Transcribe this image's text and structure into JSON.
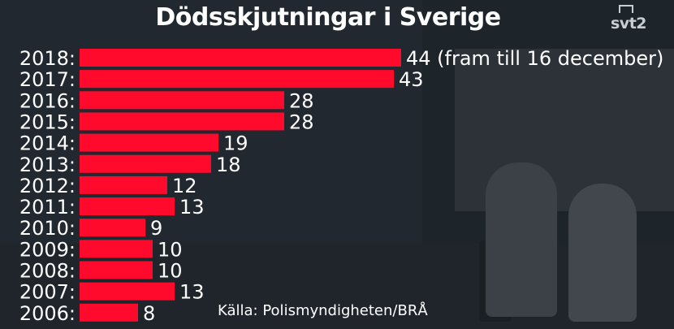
{
  "header": {
    "title": "Dödsskjutningar i Sverige",
    "logo_text": "svt2"
  },
  "source": "Källa: Polismyndigheten/BRÅ",
  "colors": {
    "bar": "#ff0a2c",
    "text": "#ffffff",
    "background": "#232a31"
  },
  "chart_data": {
    "type": "bar",
    "orientation": "horizontal",
    "title": "Dödsskjutningar i Sverige",
    "categories": [
      "2018:",
      "2017:",
      "2016:",
      "2015:",
      "2014:",
      "2013:",
      "2012:",
      "2011:",
      "2010:",
      "2009:",
      "2008:",
      "2007:",
      "2006:"
    ],
    "values": [
      44,
      43,
      28,
      28,
      19,
      18,
      12,
      13,
      9,
      10,
      10,
      13,
      8
    ],
    "data_labels": [
      "44 (fram till 16 december)",
      "43",
      "28",
      "28",
      "19",
      "18",
      "12",
      "13",
      "9",
      "10",
      "10",
      "13",
      "8"
    ],
    "xlabel": "",
    "ylabel": "",
    "xlim": [
      0,
      44
    ],
    "grid": false,
    "legend": "none"
  }
}
